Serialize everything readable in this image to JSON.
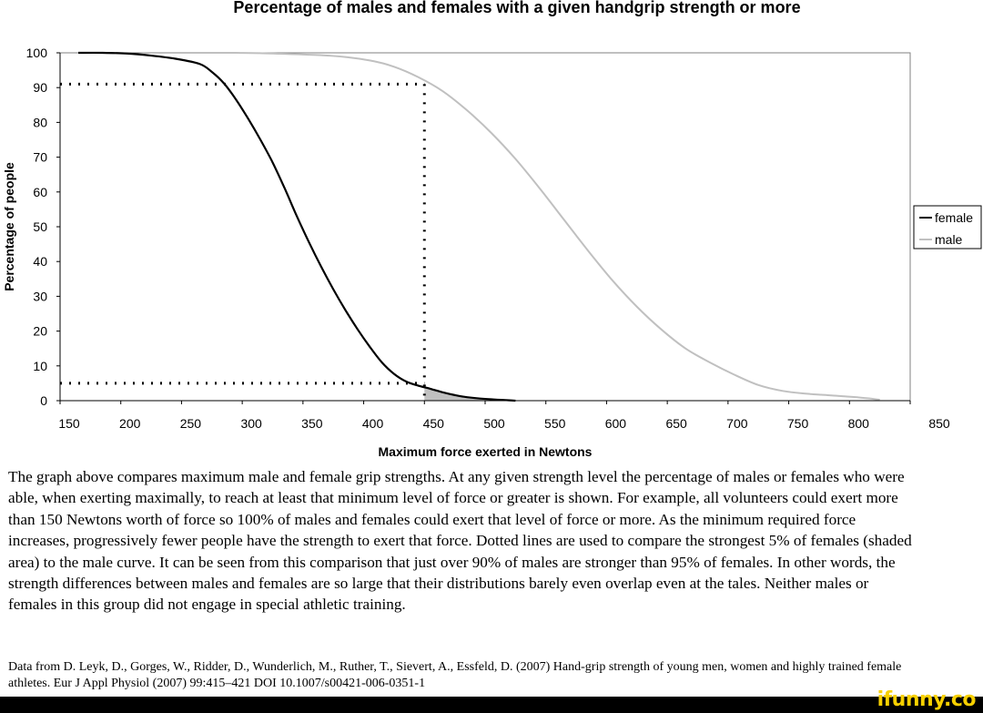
{
  "chart_data": {
    "type": "line",
    "title": "Percentage of males and females with a given handgrip strength or more",
    "xlabel": "Maximum force exerted in Newtons",
    "ylabel": "Percentage of people",
    "xlim": [
      125,
      825
    ],
    "ylim": [
      0,
      100
    ],
    "x_ticks": [
      150,
      200,
      250,
      300,
      350,
      400,
      450,
      500,
      550,
      600,
      650,
      700,
      750,
      800,
      850
    ],
    "y_ticks": [
      0,
      10,
      20,
      30,
      40,
      50,
      60,
      70,
      80,
      90,
      100
    ],
    "grid": false,
    "legend": "right",
    "series": [
      {
        "name": "female",
        "color": "#000000",
        "x": [
          140,
          160,
          180,
          200,
          220,
          240,
          250,
          260,
          270,
          280,
          290,
          300,
          310,
          320,
          330,
          340,
          350,
          360,
          370,
          380,
          390,
          400,
          410,
          420,
          430,
          440,
          450,
          460,
          475,
          500
        ],
        "y": [
          100,
          100,
          99.8,
          99.2,
          98.3,
          96.8,
          94.5,
          91.2,
          86.5,
          81,
          75,
          68.5,
          61,
          53,
          45.5,
          38.5,
          32,
          26,
          20.5,
          15.5,
          11,
          7.7,
          5.5,
          4.3,
          3.4,
          2.4,
          1.6,
          1.0,
          0.5,
          0
        ]
      },
      {
        "name": "male",
        "color": "#c0c0c0",
        "x": [
          270,
          300,
          350,
          380,
          400,
          420,
          440,
          460,
          480,
          500,
          520,
          540,
          560,
          580,
          600,
          620,
          640,
          660,
          680,
          700,
          720,
          740,
          760,
          780,
          800
        ],
        "y": [
          100,
          99.8,
          99.1,
          97.8,
          96,
          93,
          89,
          83.5,
          77,
          69.5,
          61,
          52,
          43,
          34.5,
          27,
          20.5,
          15,
          11,
          7.5,
          4.5,
          2.8,
          2,
          1.5,
          1,
          0.3
        ]
      }
    ],
    "reference_lines": {
      "x_vertical": 425,
      "y_male_90": 91,
      "y_female_95": 5
    },
    "shaded_region": {
      "label": "strongest 5% of females",
      "color": "#c0c0c0",
      "x_from": 425,
      "x_to": 500
    }
  },
  "caption": "The graph above compares maximum male and female grip strengths. At any given strength level the percentage of males or females who were able, when exerting maximally, to reach at least that minimum level of force or greater is shown. For example, all volunteers could exert more than 150 Newtons worth of force so 100% of males and females could exert that level of force or more. As the minimum required force increases, progressively fewer people have the strength to exert that force.  Dotted lines are used to compare the strongest 5% of females (shaded area)  to the male curve. It can be seen from this comparison that just over 90% of males are stronger than 95% of females. In other words, the strength differences between males and females are so large that their distributions barely even overlap even at the tales. Neither males or females in this group did not engage in special athletic training.",
  "source": "Data from D. Leyk, D., Gorges, W., Ridder, D., Wunderlich, M., Ruther, T., Sievert, A., Essfeld, D. (2007) Hand-grip strength of young men, women and highly trained female athletes. Eur J Appl Physiol (2007) 99:415–421 DOI 10.1007/s00421-006-0351-1",
  "watermark": "ifunny.co"
}
